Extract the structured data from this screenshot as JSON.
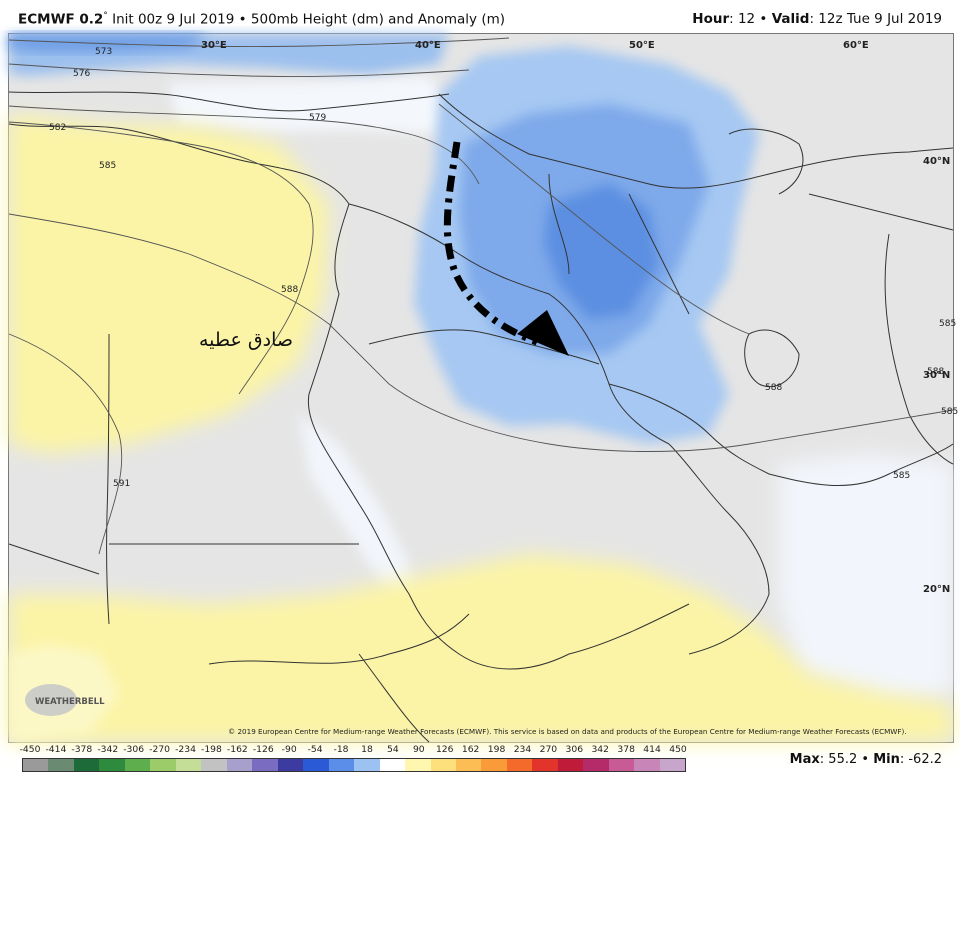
{
  "header": {
    "model": "ECMWF 0.2",
    "degree": "°",
    "init_text": " Init 00z 9 Jul 2019",
    "bullet": " • ",
    "field": "500mb Height (dm) and Anomaly (m)",
    "hour_label": "Hour",
    "hour_value": ": 12",
    "valid_label": "Valid",
    "valid_value": ": 12z Tue 9 Jul 2019"
  },
  "map": {
    "lon_labels": [
      "30°E",
      "40°E",
      "50°E",
      "60°E"
    ],
    "lat_labels": [
      "40°N",
      "30°N",
      "20°N"
    ],
    "contour_labels": [
      "573",
      "576",
      "579",
      "582",
      "585",
      "588",
      "591",
      "588",
      "585",
      "585",
      "588",
      "585"
    ],
    "annotation_text": "صادق عطيه",
    "logo_text": "WEATHERBELL",
    "colors": {
      "neutral": "#e5e5e5",
      "light_blue": "#c6dcf6",
      "mid_blue": "#95bdee",
      "blue": "#6f9fe6",
      "dark_blue": "#4e86dc",
      "yellow": "#fbf4a6",
      "pale_yellow": "#fcf8c6",
      "near_white": "#f4f7fc",
      "border": "#333333",
      "contour": "#555555",
      "arrow": "#000000"
    }
  },
  "copyright": "© 2019 European Centre for Medium-range Weather Forecasts (ECMWF). This service is based on data and products of the European Centre for Medium-range Weather Forecasts (ECMWF).",
  "legend": {
    "ticks": [
      "-450",
      "-414",
      "-378",
      "-342",
      "-306",
      "-270",
      "-234",
      "-198",
      "-162",
      "-126",
      "-90",
      "-54",
      "-18",
      "18",
      "54",
      "90",
      "126",
      "162",
      "198",
      "234",
      "270",
      "306",
      "342",
      "378",
      "414",
      "450"
    ],
    "colors": [
      "#9a9a9a",
      "#6b8a72",
      "#1e6b3a",
      "#2e8b3e",
      "#5fae4e",
      "#9ccc6a",
      "#c4de98",
      "#c2c2c2",
      "#a8a0cc",
      "#7a6cc0",
      "#3c3ca0",
      "#2a5ad6",
      "#5a8ee8",
      "#9cc2f2",
      "#ffffff",
      "#fff7b0",
      "#fde07c",
      "#fcbd54",
      "#f99b38",
      "#f36a2a",
      "#e2342a",
      "#c01c3a",
      "#b52a68",
      "#c85a96",
      "#c886b8",
      "#c8a6cc"
    ]
  },
  "maxmin": {
    "max_label": "Max",
    "max_value": ": 55.2",
    "sep": " • ",
    "min_label": "Min",
    "min_value": ": -62.2"
  }
}
